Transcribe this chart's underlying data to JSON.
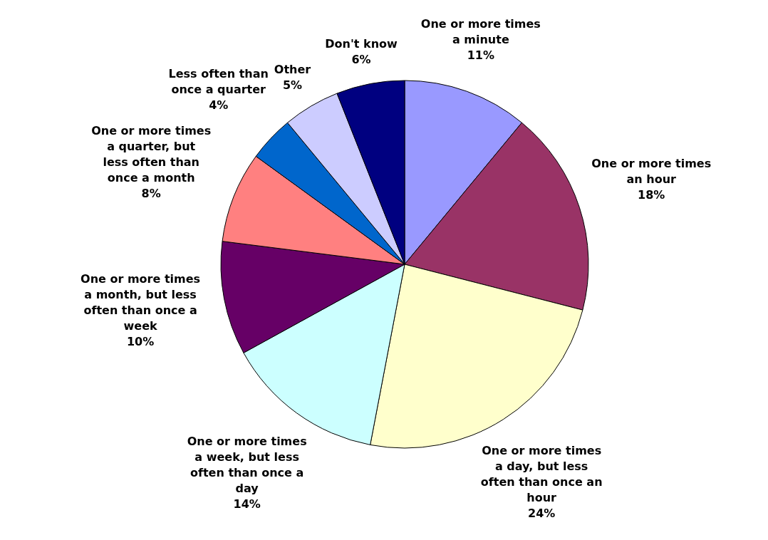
{
  "chart_data": {
    "type": "pie",
    "categories": [
      "One or more times a minute",
      "One or more times an hour",
      "One or more times a day, but less often than once an hour",
      "One or more times a week, but less often than once a day",
      "One or more times a month, but less often than once a week",
      "One or more times a quarter, but less often than once a month",
      "Less often than once a quarter",
      "Other",
      "Don't know"
    ],
    "values": [
      11,
      18,
      24,
      14,
      10,
      8,
      4,
      5,
      6
    ],
    "colors": [
      "#9999ff",
      "#993366",
      "#ffffcc",
      "#ccffff",
      "#660066",
      "#ff8080",
      "#0066cc",
      "#ccccff",
      "#000080"
    ],
    "value_labels": [
      "11%",
      "18%",
      "24%",
      "14%",
      "10%",
      "8%",
      "4%",
      "5%",
      "6%"
    ]
  }
}
